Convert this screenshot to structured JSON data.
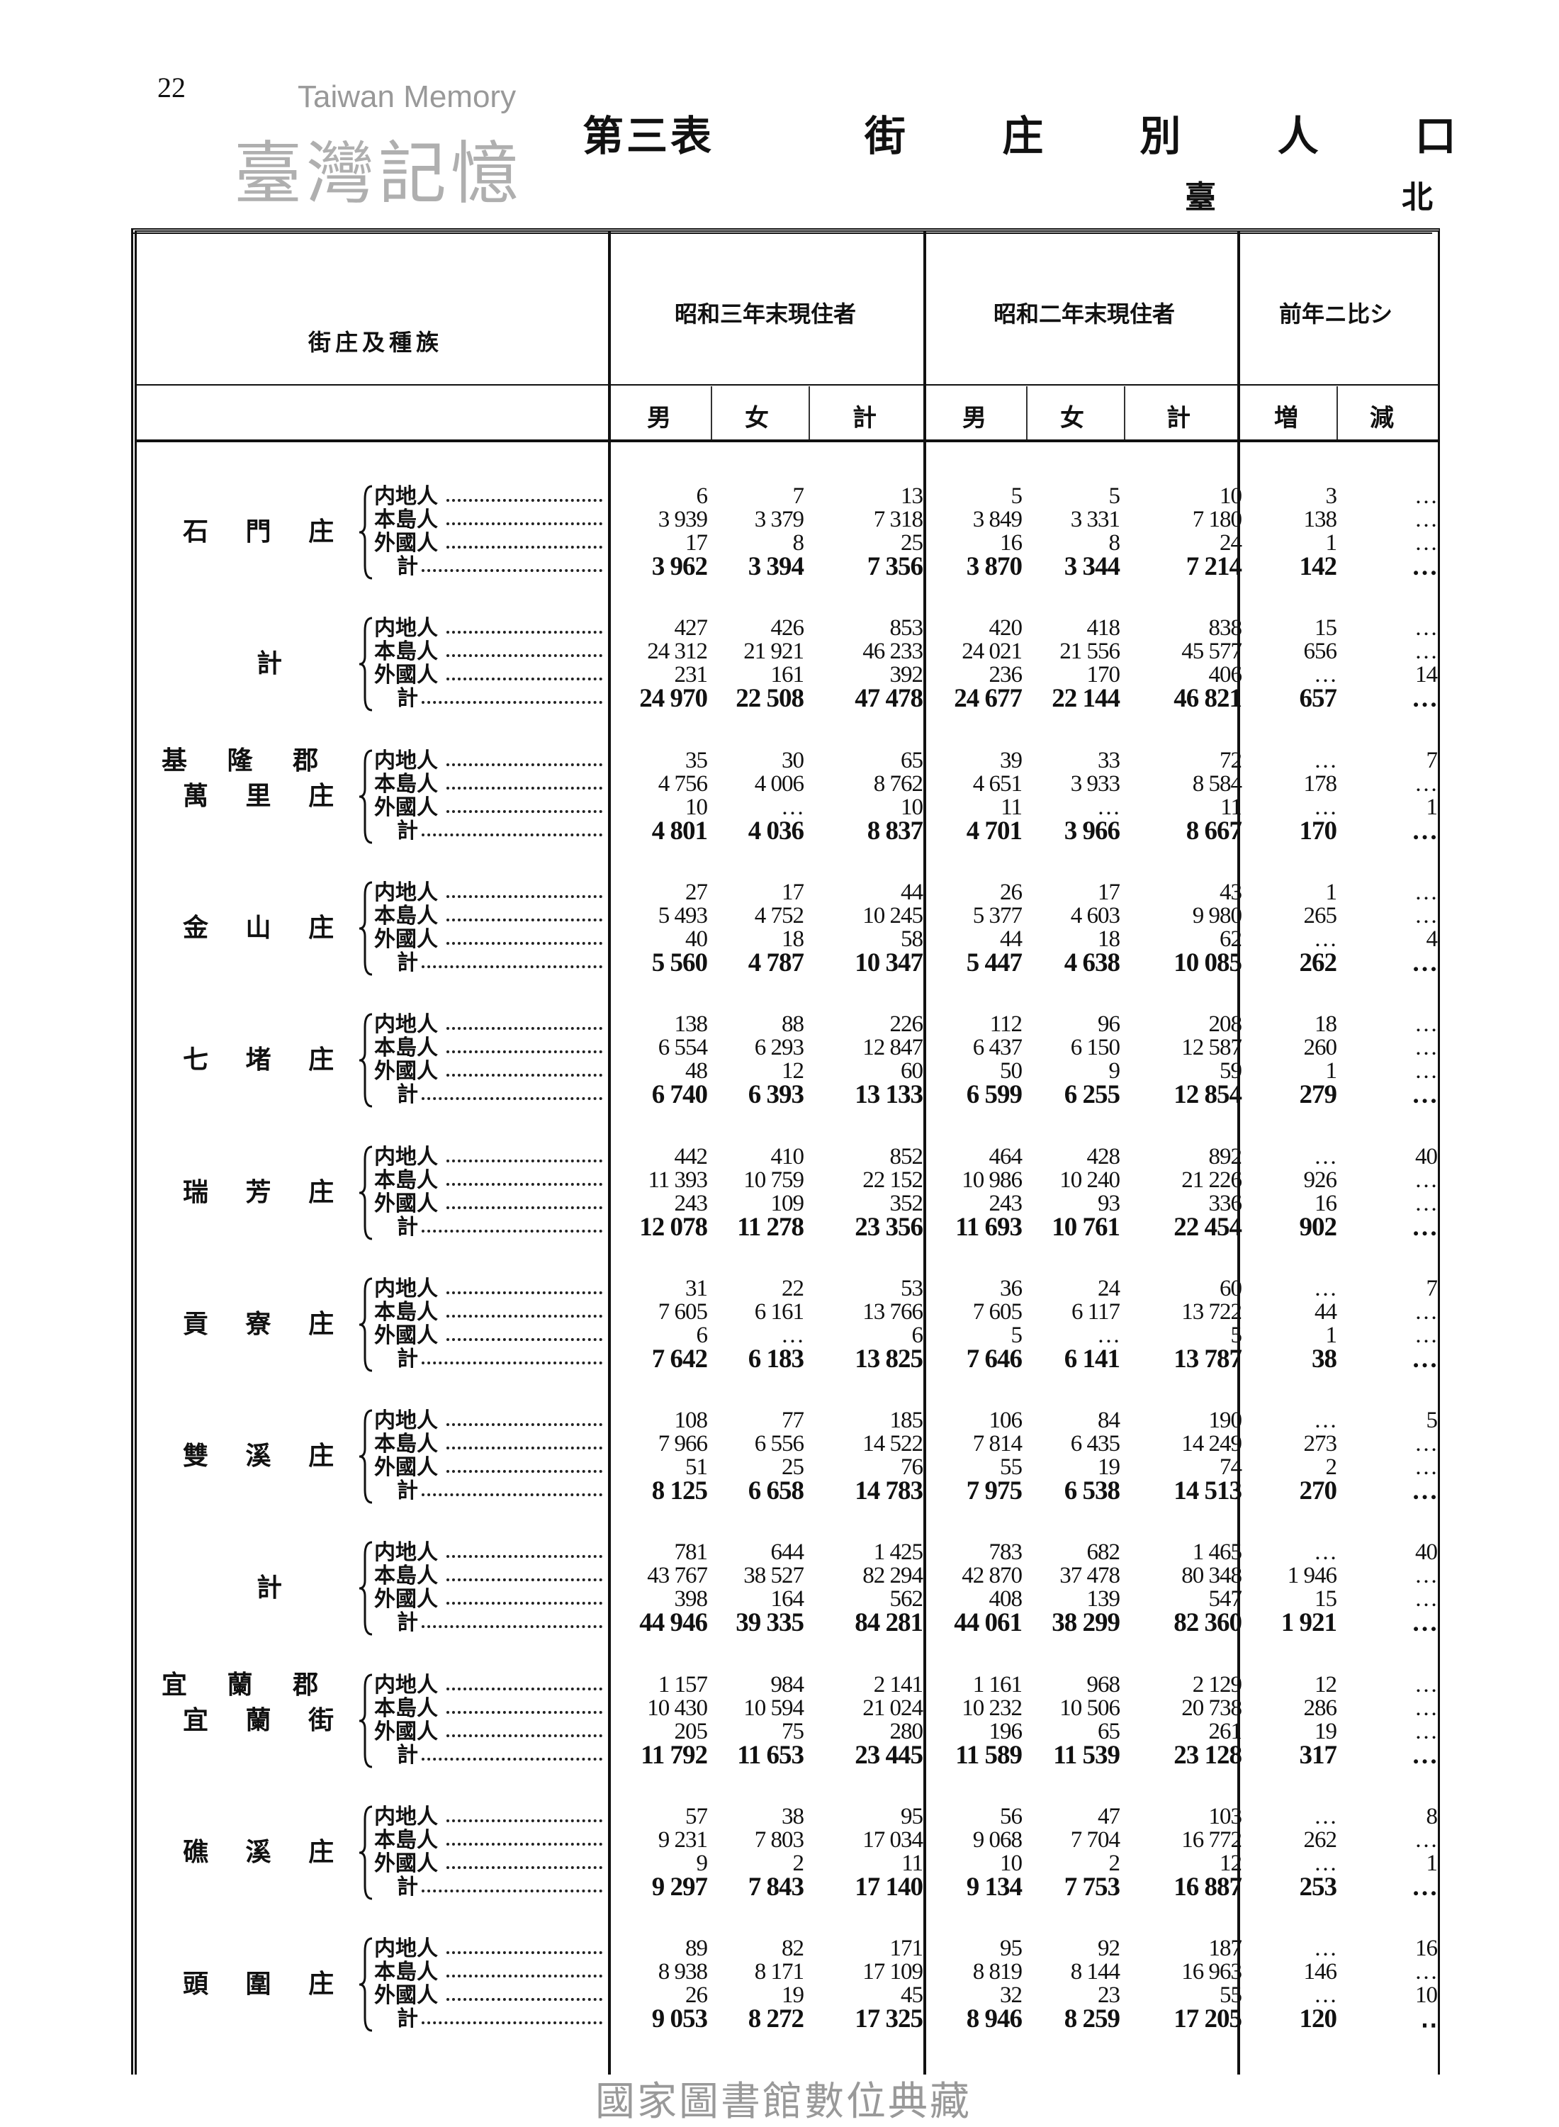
{
  "page": {
    "page_number": "22",
    "table_no": "第三表",
    "title": "街 庄 別 人 口",
    "region_left": "臺",
    "region_right": "北",
    "watermark": "臺灣記憶",
    "watermark_en": "Taiwan Memory",
    "footer": "國家圖書館數位典藏"
  },
  "header": {
    "stub": "街庄及種族",
    "group1": "昭和三年末現住者",
    "group2": "昭和二年末現住者",
    "group3": "前年ニ比シ",
    "male": "男",
    "female": "女",
    "total": "計",
    "increase": "増",
    "decrease": "減"
  },
  "row_labels": [
    "内地人",
    "本島人",
    "外國人",
    "計"
  ],
  "blocks": [
    {
      "district": "",
      "name": "石 門 庄",
      "rows": [
        [
          "6",
          "7",
          "13",
          "5",
          "5",
          "10",
          "3",
          "…"
        ],
        [
          "3 939",
          "3 379",
          "7 318",
          "3 849",
          "3 331",
          "7 180",
          "138",
          "…"
        ],
        [
          "17",
          "8",
          "25",
          "16",
          "8",
          "24",
          "1",
          "…"
        ],
        [
          "3 962",
          "3 394",
          "7 356",
          "3 870",
          "3 344",
          "7 214",
          "142",
          "…"
        ]
      ]
    },
    {
      "district": "",
      "name": "計",
      "rows": [
        [
          "427",
          "426",
          "853",
          "420",
          "418",
          "838",
          "15",
          "…"
        ],
        [
          "24 312",
          "21 921",
          "46 233",
          "24 021",
          "21 556",
          "45 577",
          "656",
          "…"
        ],
        [
          "231",
          "161",
          "392",
          "236",
          "170",
          "406",
          "…",
          "14"
        ],
        [
          "24 970",
          "22 508",
          "47 478",
          "24 677",
          "22 144",
          "46 821",
          "657",
          "…"
        ]
      ]
    },
    {
      "district": "基 隆 郡",
      "name": "萬 里 庄",
      "rows": [
        [
          "35",
          "30",
          "65",
          "39",
          "33",
          "72",
          "…",
          "7"
        ],
        [
          "4 756",
          "4 006",
          "8 762",
          "4 651",
          "3 933",
          "8 584",
          "178",
          "…"
        ],
        [
          "10",
          "…",
          "10",
          "11",
          "…",
          "11",
          "…",
          "1"
        ],
        [
          "4 801",
          "4 036",
          "8 837",
          "4 701",
          "3 966",
          "8 667",
          "170",
          "…"
        ]
      ]
    },
    {
      "district": "",
      "name": "金 山 庄",
      "rows": [
        [
          "27",
          "17",
          "44",
          "26",
          "17",
          "43",
          "1",
          "…"
        ],
        [
          "5 493",
          "4 752",
          "10 245",
          "5 377",
          "4 603",
          "9 980",
          "265",
          "…"
        ],
        [
          "40",
          "18",
          "58",
          "44",
          "18",
          "62",
          "…",
          "4"
        ],
        [
          "5 560",
          "4 787",
          "10 347",
          "5 447",
          "4 638",
          "10 085",
          "262",
          "…"
        ]
      ]
    },
    {
      "district": "",
      "name": "七 堵 庄",
      "rows": [
        [
          "138",
          "88",
          "226",
          "112",
          "96",
          "208",
          "18",
          "…"
        ],
        [
          "6 554",
          "6 293",
          "12 847",
          "6 437",
          "6 150",
          "12 587",
          "260",
          "…"
        ],
        [
          "48",
          "12",
          "60",
          "50",
          "9",
          "59",
          "1",
          "…"
        ],
        [
          "6 740",
          "6 393",
          "13 133",
          "6 599",
          "6 255",
          "12 854",
          "279",
          "…"
        ]
      ]
    },
    {
      "district": "",
      "name": "瑞 芳 庄",
      "rows": [
        [
          "442",
          "410",
          "852",
          "464",
          "428",
          "892",
          "…",
          "40"
        ],
        [
          "11 393",
          "10 759",
          "22 152",
          "10 986",
          "10 240",
          "21 226",
          "926",
          "…"
        ],
        [
          "243",
          "109",
          "352",
          "243",
          "93",
          "336",
          "16",
          "…"
        ],
        [
          "12 078",
          "11 278",
          "23 356",
          "11 693",
          "10 761",
          "22 454",
          "902",
          "…"
        ]
      ]
    },
    {
      "district": "",
      "name": "貢 寮 庄",
      "rows": [
        [
          "31",
          "22",
          "53",
          "36",
          "24",
          "60",
          "…",
          "7"
        ],
        [
          "7 605",
          "6 161",
          "13 766",
          "7 605",
          "6 117",
          "13 722",
          "44",
          "…"
        ],
        [
          "6",
          "…",
          "6",
          "5",
          "…",
          "5",
          "1",
          "…"
        ],
        [
          "7 642",
          "6 183",
          "13 825",
          "7 646",
          "6 141",
          "13 787",
          "38",
          "…"
        ]
      ]
    },
    {
      "district": "",
      "name": "雙 溪 庄",
      "rows": [
        [
          "108",
          "77",
          "185",
          "106",
          "84",
          "190",
          "…",
          "5"
        ],
        [
          "7 966",
          "6 556",
          "14 522",
          "7 814",
          "6 435",
          "14 249",
          "273",
          "…"
        ],
        [
          "51",
          "25",
          "76",
          "55",
          "19",
          "74",
          "2",
          "…"
        ],
        [
          "8 125",
          "6 658",
          "14 783",
          "7 975",
          "6 538",
          "14 513",
          "270",
          "…"
        ]
      ]
    },
    {
      "district": "",
      "name": "計",
      "rows": [
        [
          "781",
          "644",
          "1 425",
          "783",
          "682",
          "1 465",
          "…",
          "40"
        ],
        [
          "43 767",
          "38 527",
          "82 294",
          "42 870",
          "37 478",
          "80 348",
          "1 946",
          "…"
        ],
        [
          "398",
          "164",
          "562",
          "408",
          "139",
          "547",
          "15",
          "…"
        ],
        [
          "44 946",
          "39 335",
          "84 281",
          "44 061",
          "38 299",
          "82 360",
          "1 921",
          "…"
        ]
      ]
    },
    {
      "district": "宜 蘭 郡",
      "name": "宜 蘭 街",
      "rows": [
        [
          "1 157",
          "984",
          "2 141",
          "1 161",
          "968",
          "2 129",
          "12",
          "…"
        ],
        [
          "10 430",
          "10 594",
          "21 024",
          "10 232",
          "10 506",
          "20 738",
          "286",
          "…"
        ],
        [
          "205",
          "75",
          "280",
          "196",
          "65",
          "261",
          "19",
          "…"
        ],
        [
          "11 792",
          "11 653",
          "23 445",
          "11 589",
          "11 539",
          "23 128",
          "317",
          "…"
        ]
      ]
    },
    {
      "district": "",
      "name": "礁 溪 庄",
      "rows": [
        [
          "57",
          "38",
          "95",
          "56",
          "47",
          "103",
          "…",
          "8"
        ],
        [
          "9 231",
          "7 803",
          "17 034",
          "9 068",
          "7 704",
          "16 772",
          "262",
          "…"
        ],
        [
          "9",
          "2",
          "11",
          "10",
          "2",
          "12",
          "…",
          "1"
        ],
        [
          "9 297",
          "7 843",
          "17 140",
          "9 134",
          "7 753",
          "16 887",
          "253",
          "…"
        ]
      ]
    },
    {
      "district": "",
      "name": "頭 圍 庄",
      "rows": [
        [
          "89",
          "82",
          "171",
          "95",
          "92",
          "187",
          "…",
          "16"
        ],
        [
          "8 938",
          "8 171",
          "17 109",
          "8 819",
          "8 144",
          "16 963",
          "146",
          "…"
        ],
        [
          "26",
          "19",
          "45",
          "32",
          "23",
          "55",
          "…",
          "10"
        ],
        [
          "9 053",
          "8 272",
          "17 325",
          "8 946",
          "8 259",
          "17 205",
          "120",
          "‥"
        ]
      ]
    }
  ]
}
